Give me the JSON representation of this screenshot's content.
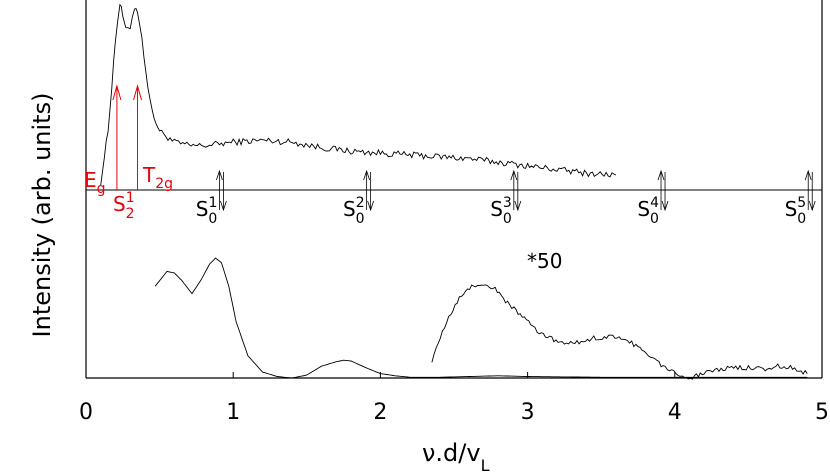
{
  "chart_data": {
    "type": "line",
    "xlabel_main": "ν.d/v",
    "xlabel_sub": "L",
    "ylabel": "Intensity (arb. units)",
    "xlim": [
      0,
      5
    ],
    "x_ticks": [
      "0",
      "1",
      "2",
      "3",
      "4",
      "5"
    ],
    "grid": false,
    "legend": "none",
    "colors": {
      "axes": "#000000",
      "data": "#000000",
      "highlight": "#e8000b"
    },
    "annotation_scale": "*50",
    "peak_labels": [
      {
        "base": "E",
        "sub": "g",
        "x": 0.2
      },
      {
        "base": "S",
        "sub": "2",
        "sup": "1",
        "x": 0.27
      },
      {
        "base": "T",
        "sub": "2g",
        "x": 0.5
      }
    ],
    "red_arrows_x": [
      0.21,
      0.35
    ],
    "s0_lines": [
      {
        "base": "S",
        "sub": "0",
        "sup": "1",
        "x": 0.92
      },
      {
        "base": "S",
        "sub": "0",
        "sup": "2",
        "x": 1.92
      },
      {
        "base": "S",
        "sub": "0",
        "sup": "3",
        "x": 2.92
      },
      {
        "base": "S",
        "sub": "0",
        "sup": "4",
        "x": 3.92
      },
      {
        "base": "S",
        "sub": "0",
        "sup": "5",
        "x": 4.92
      }
    ],
    "series": [
      {
        "panel": "upper",
        "x": [
          0.1,
          0.15,
          0.2,
          0.23,
          0.25,
          0.27,
          0.3,
          0.33,
          0.35,
          0.38,
          0.42,
          0.45,
          0.5,
          0.6,
          0.7,
          0.8,
          1.0,
          1.2,
          1.4,
          1.6,
          1.8,
          2.0,
          2.2,
          2.4,
          2.6,
          2.8,
          3.0,
          3.2,
          3.4,
          3.6
        ],
        "y": [
          0.02,
          0.3,
          0.8,
          1.0,
          0.93,
          0.85,
          0.87,
          0.98,
          0.96,
          0.8,
          0.55,
          0.4,
          0.3,
          0.24,
          0.22,
          0.22,
          0.24,
          0.25,
          0.24,
          0.21,
          0.19,
          0.18,
          0.17,
          0.16,
          0.15,
          0.13,
          0.11,
          0.09,
          0.07,
          0.06
        ]
      },
      {
        "panel": "lower",
        "x": [
          0.47,
          0.55,
          0.6,
          0.65,
          0.72,
          0.78,
          0.84,
          0.88,
          0.92,
          0.97,
          1.02,
          1.1,
          1.2,
          1.3,
          1.4,
          1.5,
          1.6,
          1.7,
          1.75,
          1.8,
          1.9,
          2.0,
          2.1,
          2.2,
          2.4,
          2.6,
          2.8,
          3.0,
          3.5,
          4.0,
          4.5,
          4.9
        ],
        "y": [
          0.62,
          0.72,
          0.71,
          0.66,
          0.57,
          0.66,
          0.77,
          0.81,
          0.78,
          0.62,
          0.38,
          0.15,
          0.04,
          0.01,
          0.0,
          0.02,
          0.08,
          0.11,
          0.12,
          0.115,
          0.07,
          0.03,
          0.015,
          0.005,
          0.005,
          0.01,
          0.015,
          0.01,
          0.005,
          0.005,
          0.005,
          0.005
        ]
      },
      {
        "panel": "lower",
        "name": "*50",
        "x": [
          2.35,
          2.45,
          2.55,
          2.62,
          2.7,
          2.78,
          2.85,
          2.95,
          3.05,
          3.15,
          3.25,
          3.35,
          3.45,
          3.55,
          3.65,
          3.75,
          3.85,
          3.95,
          4.05,
          4.12,
          4.2,
          4.3,
          4.4,
          4.5,
          4.6,
          4.7,
          4.8,
          4.9
        ],
        "y": [
          0.12,
          0.38,
          0.56,
          0.62,
          0.63,
          0.6,
          0.52,
          0.43,
          0.33,
          0.27,
          0.23,
          0.24,
          0.27,
          0.28,
          0.27,
          0.21,
          0.13,
          0.06,
          0.02,
          0.0,
          0.04,
          0.06,
          0.07,
          0.07,
          0.06,
          0.08,
          0.07,
          0.03
        ]
      }
    ]
  }
}
